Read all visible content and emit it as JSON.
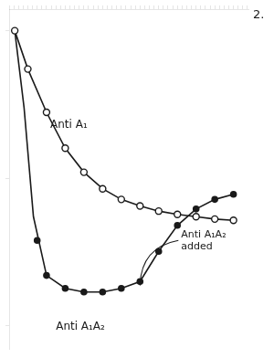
{
  "chart_data": {
    "type": "line",
    "log": "y",
    "grid": false,
    "tick_labels": false,
    "xlim": [
      0,
      12.8
    ],
    "ylim": [
      0.007,
      1.4
    ],
    "xticks": [
      0,
      0.25,
      0.5,
      0.75,
      1,
      1.25,
      1.5,
      1.75,
      2,
      2.25,
      2.5,
      2.75,
      3,
      3.25,
      3.5,
      3.75,
      4,
      4.25,
      4.5,
      4.75,
      5,
      5.25,
      5.5,
      5.75,
      6,
      6.25,
      6.5,
      6.75,
      7,
      7.25,
      7.5,
      7.75,
      8,
      8.25,
      8.5,
      8.75,
      9,
      9.25,
      9.5,
      9.75,
      10,
      10.25,
      10.5,
      10.75,
      11,
      11.25,
      11.5,
      11.75,
      12,
      12.25,
      12.5,
      12.75
    ],
    "yticks": [
      0.01,
      0.1,
      1
    ],
    "series": [
      {
        "type": "line",
        "marker": "open_circle",
        "color": "#1a1a1a",
        "x": [
          0.3,
          1,
          2,
          3,
          4,
          5,
          6,
          7,
          8,
          9,
          10,
          11,
          12
        ],
        "values": [
          1.0,
          0.55,
          0.28,
          0.16,
          0.11,
          0.085,
          0.072,
          0.065,
          0.06,
          0.057,
          0.055,
          0.053,
          0.052
        ]
      },
      {
        "type": "line",
        "marker": "none",
        "color": "#1a1a1a",
        "x": [
          0.3,
          0.8,
          1.3,
          2,
          3,
          4,
          5,
          6,
          7,
          8,
          9,
          10,
          11,
          12
        ],
        "values": [
          1.0,
          0.3,
          0.055,
          0.022,
          0.018,
          0.017,
          0.017,
          0.018,
          0.02,
          0.032,
          0.048,
          0.062,
          0.072,
          0.078
        ]
      },
      {
        "type": "scatter",
        "marker": "circle",
        "color": "#1a1a1a",
        "x": [
          2,
          3,
          4,
          5,
          6,
          7,
          8,
          9,
          10,
          11,
          12
        ],
        "values": [
          0.022,
          0.018,
          0.017,
          0.017,
          0.018,
          0.02,
          0.032,
          0.048,
          0.062,
          0.072,
          0.078
        ]
      },
      {
        "type": "scatter",
        "marker": "circle",
        "color": "#1a1a1a",
        "x": [
          1.5
        ],
        "values": [
          0.038
        ]
      }
    ],
    "annotations": [
      {
        "text": "Anti A₁",
        "x": 2.2,
        "y": 0.22
      },
      {
        "text": "Anti A₁A₂",
        "x": 2.5,
        "y": 0.0095
      },
      {
        "text": "Anti A₁A₂\nadded",
        "x": 9.2,
        "y": 0.038,
        "arrow_to": {
          "x": 7.0,
          "y": 0.019
        }
      },
      {
        "text": "2."
      }
    ]
  }
}
